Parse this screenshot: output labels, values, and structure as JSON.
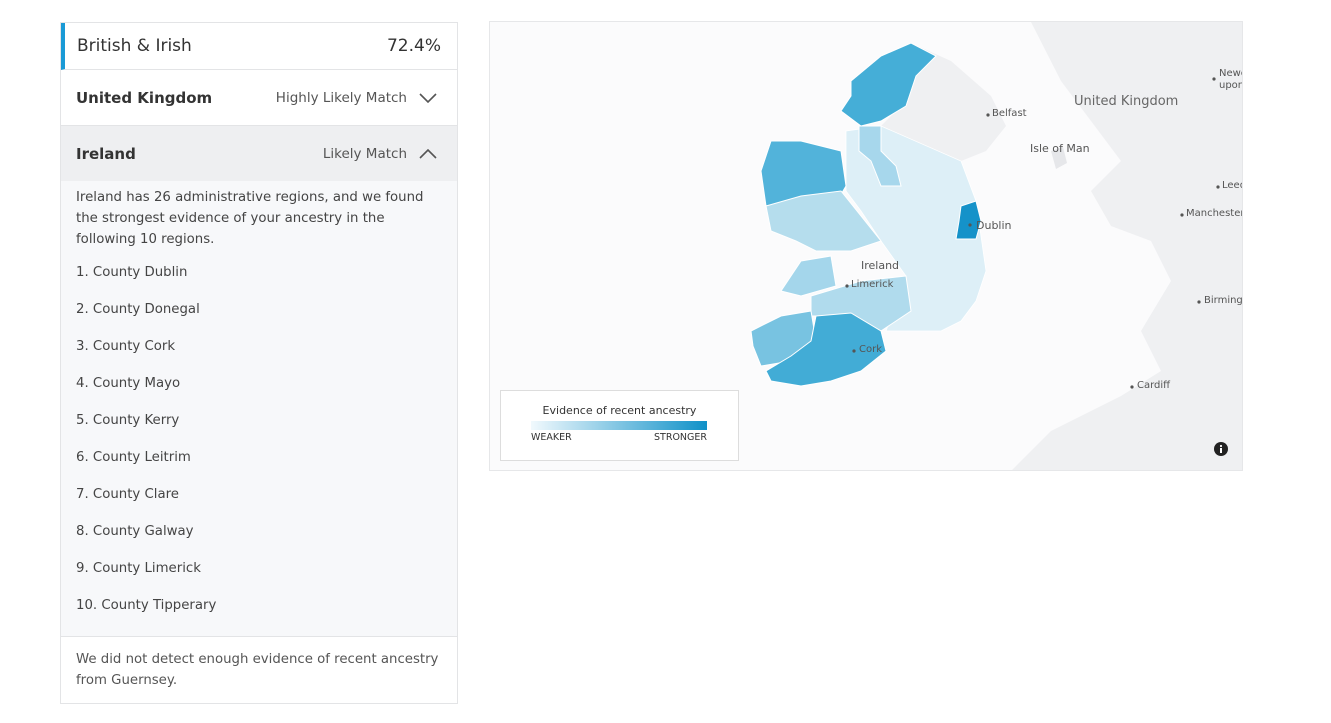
{
  "header": {
    "title": "British & Irish",
    "percent": "72.4%"
  },
  "rows": [
    {
      "name": "United Kingdom",
      "match": "Highly Likely Match"
    },
    {
      "name": "Ireland",
      "match": "Likely Match"
    }
  ],
  "detail": {
    "intro": "Ireland has 26 administrative regions, and we found the strongest evidence of your ancestry in the following 10 regions.",
    "regions": [
      "1. County Dublin",
      "2. County Donegal",
      "3. County Cork",
      "4. County Mayo",
      "5. County Kerry",
      "6. County Leitrim",
      "7. County Clare",
      "8. County Galway",
      "9. County Limerick",
      "10. County Tipperary"
    ]
  },
  "footer": "We did not detect enough evidence of recent ancestry from Guernsey.",
  "map": {
    "labels": {
      "uk": "United Kingdom",
      "belfast": "Belfast",
      "isle": "Isle of Man",
      "dublin": "Dublin",
      "ireland": "Ireland",
      "limerick": "Limerick",
      "cork": "Cork",
      "manchester": "Manchester",
      "leeds": "Leed",
      "birmingham": "Birmingh",
      "newc1": "Newc",
      "newc2": "upon",
      "cardiff": "Cardiff"
    },
    "legend": {
      "title": "Evidence of recent ancestry",
      "weaker": "WEAKER",
      "stronger": "STRONGER"
    }
  }
}
